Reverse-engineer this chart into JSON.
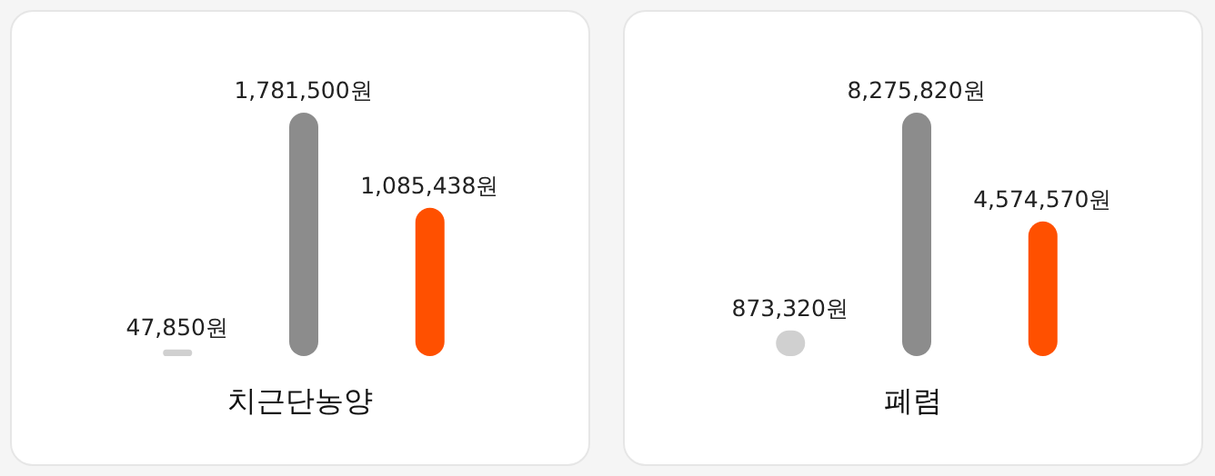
{
  "chart_data": [
    {
      "type": "bar",
      "title": "치근단농양",
      "categories": [
        null,
        null,
        null
      ],
      "values": [
        47850,
        1781500,
        1085438
      ],
      "colors": [
        "#d0d0d0",
        "#8c8c8c",
        "#ff5000"
      ],
      "value_labels": [
        "47,850원",
        "1,781,500원",
        "1,085,438원"
      ]
    },
    {
      "type": "bar",
      "title": "폐렴",
      "categories": [
        null,
        null,
        null
      ],
      "values": [
        873320,
        8275820,
        4574570
      ],
      "colors": [
        "#d0d0d0",
        "#8c8c8c",
        "#ff5000"
      ],
      "value_labels": [
        "873,320원",
        "8,275,820원",
        "4,574,570원"
      ]
    }
  ]
}
